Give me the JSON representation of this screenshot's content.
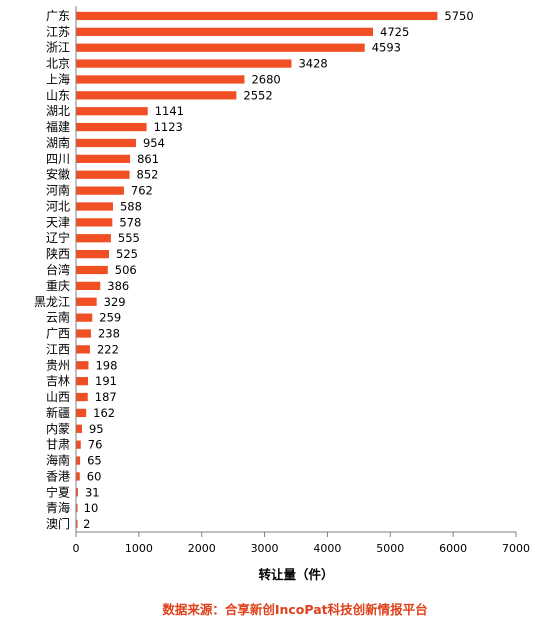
{
  "colors": {
    "bar": "#f04e23",
    "axis": "#808080",
    "source_text": "#e0401a"
  },
  "chart_data": {
    "type": "bar",
    "orientation": "horizontal",
    "categories": [
      "广东",
      "江苏",
      "浙江",
      "北京",
      "上海",
      "山东",
      "湖北",
      "福建",
      "湖南",
      "四川",
      "安徽",
      "河南",
      "河北",
      "天津",
      "辽宁",
      "陕西",
      "台湾",
      "重庆",
      "黑龙江",
      "云南",
      "广西",
      "江西",
      "贵州",
      "吉林",
      "山西",
      "新疆",
      "内蒙",
      "甘肃",
      "海南",
      "香港",
      "宁夏",
      "青海",
      "澳门"
    ],
    "values": [
      5750,
      4725,
      4593,
      3428,
      2680,
      2552,
      1141,
      1123,
      954,
      861,
      852,
      762,
      588,
      578,
      555,
      525,
      506,
      386,
      329,
      259,
      238,
      222,
      198,
      191,
      187,
      162,
      95,
      76,
      65,
      60,
      31,
      10,
      2
    ],
    "xlabel": "转让量（件）",
    "xlim": [
      0,
      7000
    ],
    "xticks": [
      0,
      1000,
      2000,
      3000,
      4000,
      5000,
      6000,
      7000
    ],
    "grid": false,
    "legend": "none"
  },
  "footer": {
    "source": "数据来源：合享新创IncoPat科技创新情报平台"
  }
}
